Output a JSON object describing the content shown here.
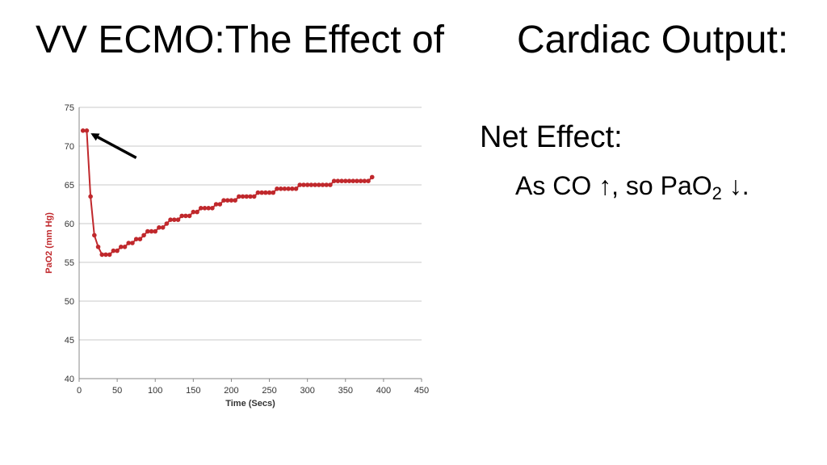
{
  "slide": {
    "title_left": "VV ECMO:The Effect of",
    "title_right": "Cardiac Output:",
    "net_effect_heading": "Net Effect:",
    "statement": {
      "prefix": "As CO ",
      "arrow_up": "↑",
      "middle": ", so PaO",
      "subscript": "2",
      "arrow_down": " ↓",
      "suffix": "."
    }
  },
  "colors": {
    "series": "#c0282c",
    "gridline": "#c8c8c8",
    "axis_text": "#333333",
    "arrow": "#000000"
  },
  "chart_data": {
    "type": "line",
    "title": "",
    "xlabel": "Time (Secs)",
    "ylabel": "PaO2 (mm Hg)",
    "xlim": [
      0,
      450
    ],
    "ylim": [
      40,
      75
    ],
    "x_ticks": [
      0,
      50,
      100,
      150,
      200,
      250,
      300,
      350,
      400,
      450
    ],
    "y_ticks": [
      40,
      45,
      50,
      55,
      60,
      65,
      70,
      75
    ],
    "grid": true,
    "series": [
      {
        "x": [
          5,
          10,
          15,
          20,
          25,
          30,
          35,
          40,
          45,
          50,
          55,
          60,
          65,
          70,
          75,
          80,
          85,
          90,
          95,
          100,
          105,
          110,
          115,
          120,
          125,
          130,
          135,
          140,
          145,
          150,
          155,
          160,
          165,
          170,
          175,
          180,
          185,
          190,
          195,
          200,
          205,
          210,
          215,
          220,
          225,
          230,
          235,
          240,
          245,
          250,
          255,
          260,
          265,
          270,
          275,
          280,
          285,
          290,
          295,
          300,
          305,
          310,
          315,
          320,
          325,
          330,
          335,
          340,
          345,
          350,
          355,
          360,
          365,
          370,
          375,
          380,
          385
        ],
        "y": [
          72,
          72,
          63.5,
          58.5,
          57,
          56,
          56,
          56,
          56.5,
          56.5,
          57,
          57,
          57.5,
          57.5,
          58,
          58,
          58.5,
          59,
          59,
          59,
          59.5,
          59.5,
          60,
          60.5,
          60.5,
          60.5,
          61,
          61,
          61,
          61.5,
          61.5,
          62,
          62,
          62,
          62,
          62.5,
          62.5,
          63,
          63,
          63,
          63,
          63.5,
          63.5,
          63.5,
          63.5,
          63.5,
          64,
          64,
          64,
          64,
          64,
          64.5,
          64.5,
          64.5,
          64.5,
          64.5,
          64.5,
          65,
          65,
          65,
          65,
          65,
          65,
          65,
          65,
          65,
          65.5,
          65.5,
          65.5,
          65.5,
          65.5,
          65.5,
          65.5,
          65.5,
          65.5,
          65.5,
          66
        ]
      }
    ],
    "annotations": [
      {
        "type": "arrow",
        "from": [
          75,
          68.5
        ],
        "to": [
          18,
          71.5
        ]
      }
    ]
  }
}
